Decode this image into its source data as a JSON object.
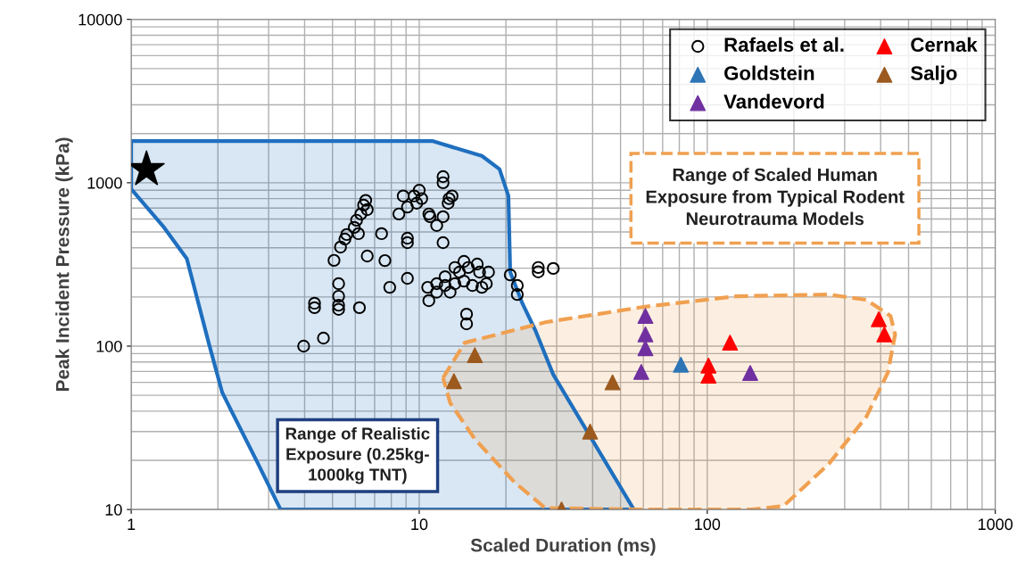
{
  "chart_data": {
    "type": "scatter",
    "xlabel": "Scaled Duration (ms)",
    "ylabel": "Peak Incident Pressure (kPa)",
    "log": "xy",
    "xlim": [
      1,
      1000
    ],
    "ylim": [
      10,
      10000
    ],
    "xticks": [
      1,
      10,
      100,
      1000
    ],
    "yticks": [
      10,
      100,
      1000,
      10000
    ],
    "grid": true,
    "legend": "top right",
    "annotations": [
      "Range of Realistic Exposure (0.25kg-1000kg TNT)",
      "Range of Scaled Human Exposure from Typical Rodent Neurotrauma Models"
    ],
    "series": [
      {
        "type": "area",
        "color": "#1f6fbf",
        "line_style": "solid",
        "x": [
          1,
          11.1,
          16.5,
          19.0,
          20.4,
          20.7,
          22.8,
          25.3,
          29.2,
          55.6,
          3.3,
          2.76,
          2.07,
          1.86,
          1.56,
          1.3,
          1,
          1
        ],
        "values": [
          1800,
          1800,
          1460,
          1210,
          830,
          284,
          183,
          125,
          67,
          10,
          10,
          19,
          52,
          104,
          343,
          533,
          916,
          1800
        ]
      },
      {
        "type": "area",
        "color": "#f0a050",
        "line_style": "dashed",
        "x": [
          12.1,
          14.4,
          27.4,
          60.3,
          126,
          264,
          357,
          433,
          449,
          424,
          357,
          264,
          184,
          143,
          60.3,
          27.4,
          21.5,
          15.6,
          12.8,
          12.1
        ],
        "values": [
          64,
          105,
          140,
          174,
          202,
          207,
          192,
          153,
          118,
          69,
          37,
          19,
          10.5,
          10,
          10,
          10.2,
          14.6,
          27,
          45,
          64
        ]
      },
      {
        "name": "Rafaels et al.",
        "color": "#000000",
        "marker": "circle",
        "x": [
          3.97,
          4.65,
          4.33,
          4.33,
          5.25,
          5.25,
          5.25,
          5.25,
          6.2,
          5.06,
          5.33,
          5.52,
          5.6,
          5.95,
          6.06,
          6.27,
          6.41,
          6.52,
          6.6,
          6.15,
          6.6,
          7.4,
          7.6,
          7.9,
          9.1,
          9.1,
          9.1,
          8.5,
          8.8,
          9.6,
          10,
          10.2,
          9.1,
          9.8,
          10.8,
          10.9,
          12.1,
          12.1,
          12.6,
          13.0,
          12.7,
          12.1,
          11.5,
          12.1,
          10.8,
          14.6,
          14.6,
          10.7,
          11.5,
          12.3,
          13.3,
          14.3,
          15.3,
          16.5,
          17.1,
          13.8,
          14.8,
          15.9,
          14.3,
          12.3,
          13.3,
          11.5,
          12.8,
          17.4,
          16.2,
          20.7,
          21.9,
          21.9,
          25.9,
          25.9,
          29.2
        ],
        "values": [
          100,
          112,
          183,
          172,
          241,
          202,
          178,
          168,
          172,
          335,
          404,
          452,
          482,
          533,
          590,
          644,
          730,
          780,
          685,
          488,
          356,
          488,
          334,
          229,
          260,
          458,
          430,
          644,
          830,
          830,
          900,
          800,
          710,
          750,
          644,
          620,
          1090,
          1000,
          750,
          830,
          800,
          620,
          548,
          430,
          190,
          157,
          137,
          229,
          241,
          235,
          241,
          250,
          235,
          229,
          241,
          284,
          303,
          318,
          330,
          266,
          303,
          214,
          214,
          284,
          284,
          273,
          235,
          207,
          303,
          285,
          299
        ]
      },
      {
        "name": "Goldstein",
        "color": "#2e75b6",
        "marker": "triangle",
        "x": [
          81
        ],
        "values": [
          77
        ]
      },
      {
        "name": "Vandevord",
        "color": "#7030a0",
        "marker": "triangle",
        "x": [
          61,
          61,
          61,
          59,
          141
        ],
        "values": [
          153,
          118,
          97,
          69.5,
          68.5
        ]
      },
      {
        "name": "Cernak",
        "color": "#ff0000",
        "marker": "triangle",
        "x": [
          120,
          101,
          101,
          394,
          412
        ],
        "values": [
          105,
          76,
          66,
          146,
          118
        ]
      },
      {
        "name": "Saljo",
        "color": "#9c5a1e",
        "marker": "triangle",
        "x": [
          15.6,
          13.2,
          46.9,
          39.2,
          31.2
        ],
        "values": [
          88,
          61,
          60,
          30,
          10
        ]
      },
      {
        "color": "#000000",
        "marker": "star",
        "x": [
          1.13
        ],
        "values": [
          1206
        ]
      }
    ]
  }
}
